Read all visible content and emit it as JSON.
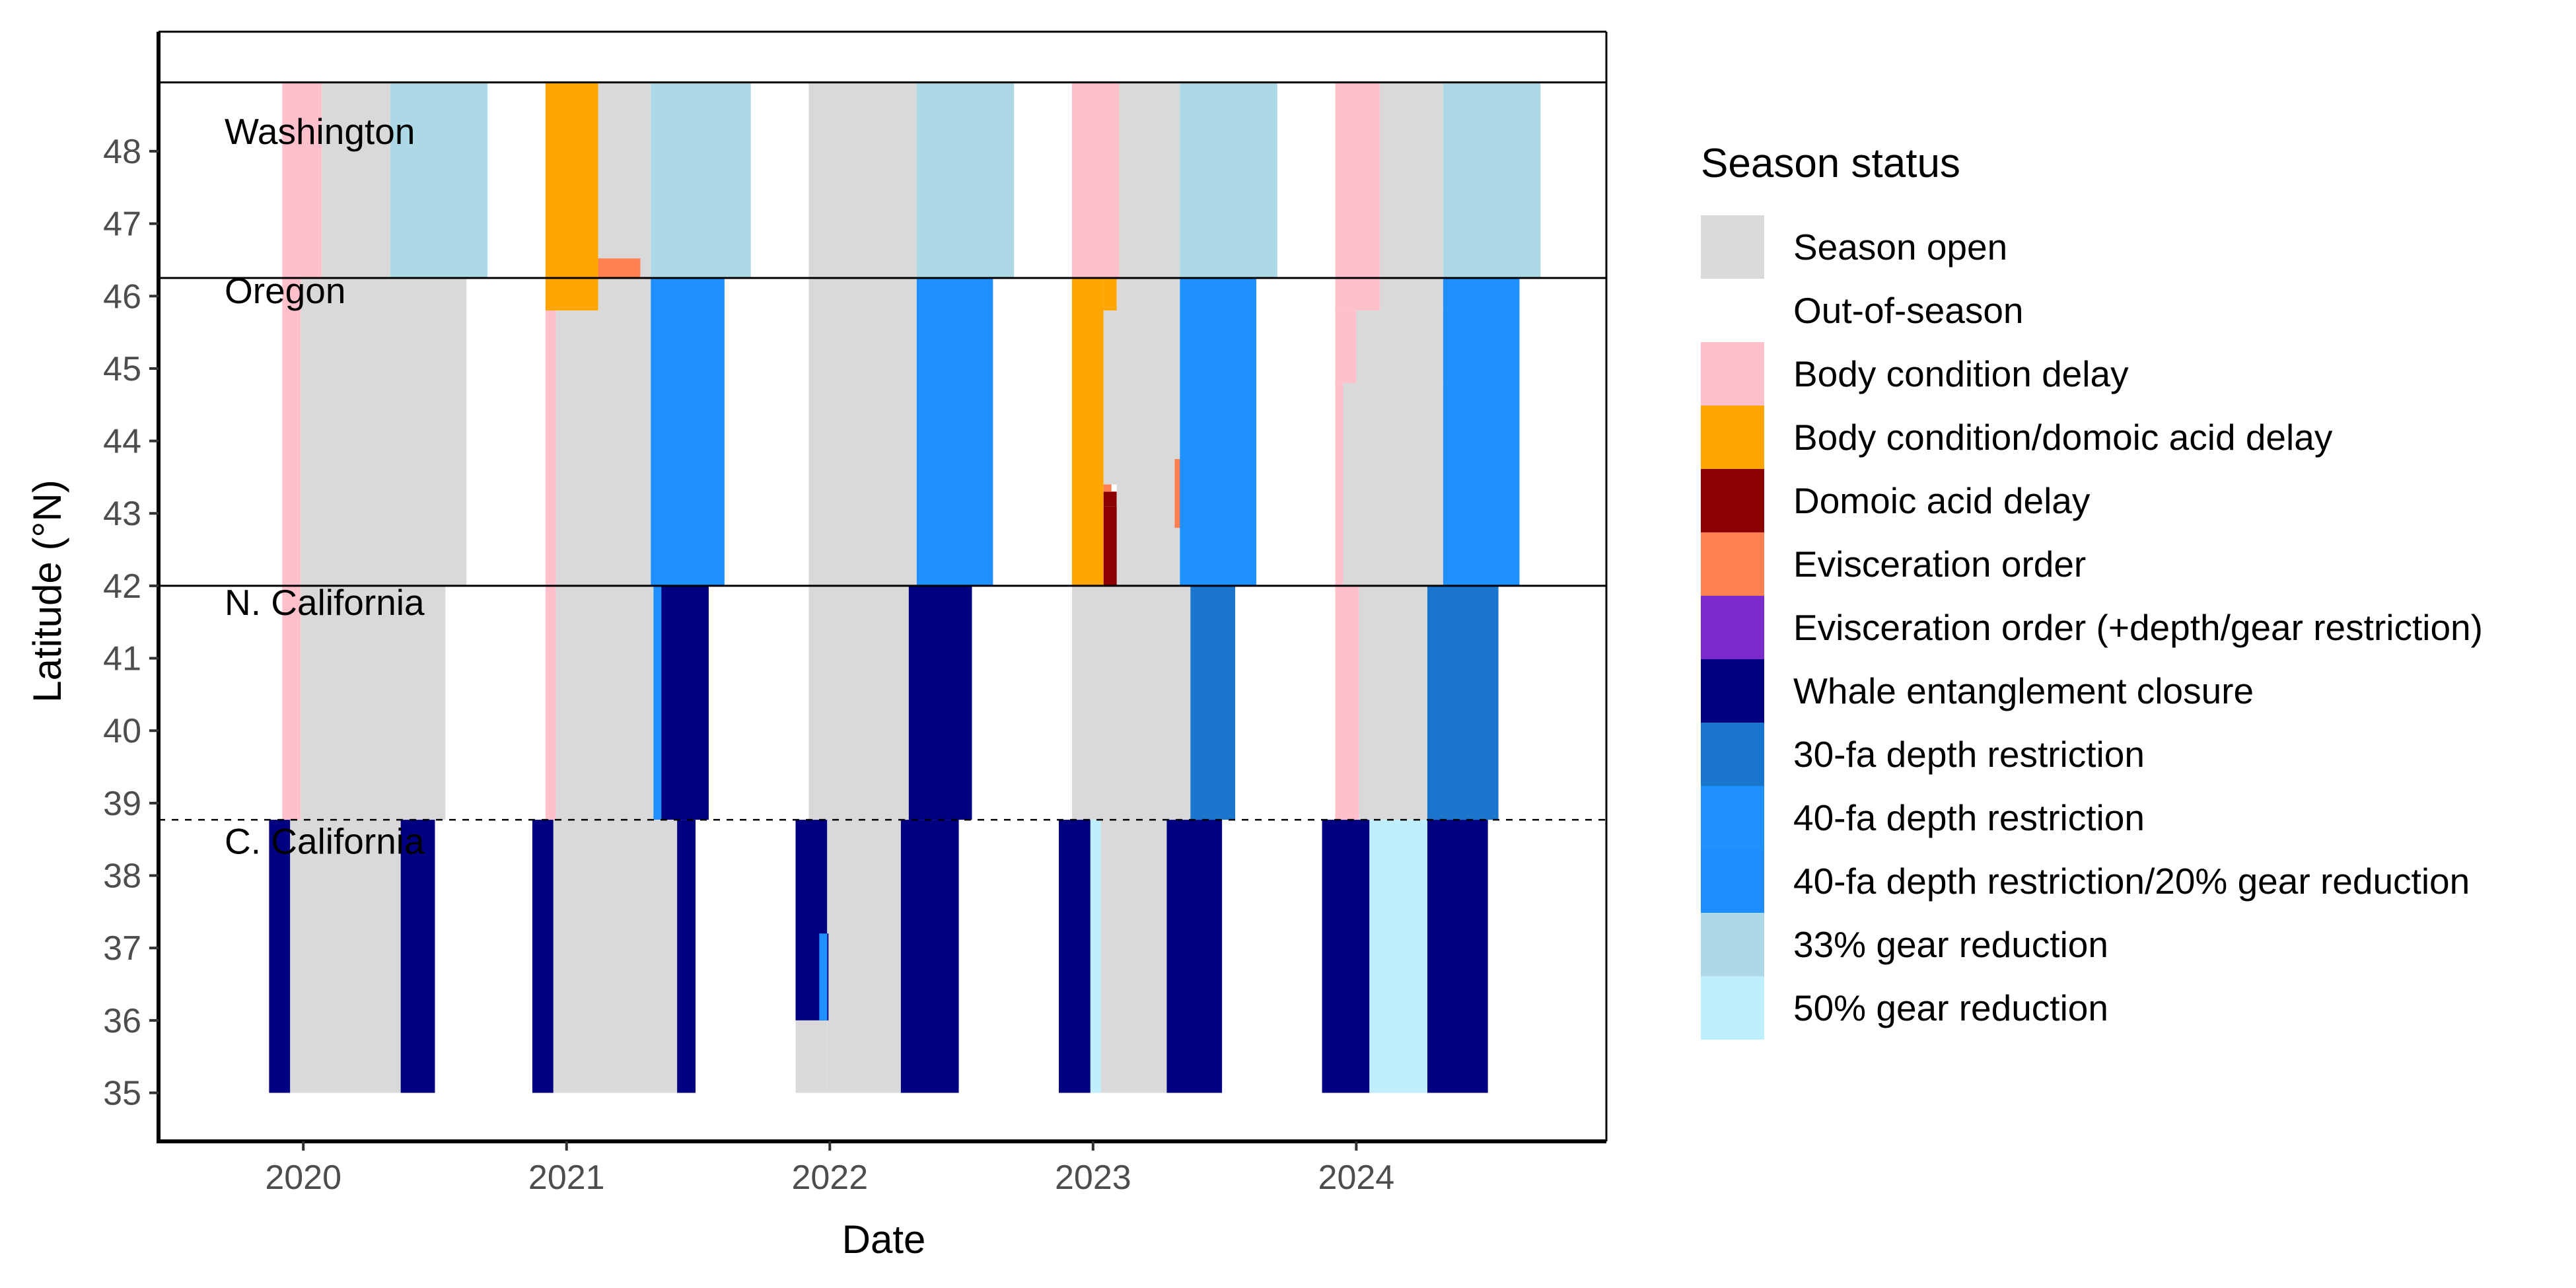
{
  "chart_data": {
    "type": "heatmap",
    "xlabel": "Date",
    "ylabel": "Latitude (°N)",
    "xlim": [
      2019.45,
      2024.95
    ],
    "ylim": [
      34.33,
      49.65
    ],
    "x_ticks": [
      2020,
      2021,
      2022,
      2023,
      2024
    ],
    "y_ticks": [
      35,
      36,
      37,
      38,
      39,
      40,
      41,
      42,
      43,
      44,
      45,
      46,
      47,
      48
    ],
    "region_boundaries": [
      48.95,
      46.25,
      42.0,
      38.77
    ],
    "regions": [
      {
        "name": "Washington",
        "label_lat": 48.1
      },
      {
        "name": "Oregon",
        "label_lat": 45.9
      },
      {
        "name": "N. California",
        "label_lat": 41.6
      },
      {
        "name": "C. California",
        "label_lat": 38.3
      }
    ],
    "legend": {
      "title": "Season status",
      "items": [
        {
          "key": "open",
          "label": "Season open",
          "color": "#d9d9d9"
        },
        {
          "key": "out",
          "label": "Out-of-season",
          "color": "#ffffff"
        },
        {
          "key": "bcd",
          "label": "Body condition delay",
          "color": "#ffc0cb"
        },
        {
          "key": "bcda",
          "label": "Body condition/domoic acid delay",
          "color": "#ffa500"
        },
        {
          "key": "da",
          "label": "Domoic acid delay",
          "color": "#8b0000"
        },
        {
          "key": "evisc",
          "label": "Evisceration order",
          "color": "#ff7f50"
        },
        {
          "key": "evisc_plus",
          "label": "Evisceration order (+depth/gear restriction)",
          "color": "#7b2bcc"
        },
        {
          "key": "whale",
          "label": "Whale entanglement closure",
          "color": "#000080"
        },
        {
          "key": "d30",
          "label": "30-fa depth restriction",
          "color": "#1a75cc"
        },
        {
          "key": "d40",
          "label": "40-fa depth restriction",
          "color": "#1e90ff"
        },
        {
          "key": "d40g20",
          "label": "40-fa depth restriction/20% gear reduction",
          "color": "#1e8cff"
        },
        {
          "key": "g33",
          "label": "33% gear reduction",
          "color": "#add8e6"
        },
        {
          "key": "g50",
          "label": "50% gear reduction",
          "color": "#bfeefc"
        }
      ]
    },
    "blocks": [
      {
        "x0": 2019.72,
        "x1": 2019.92,
        "y0": 46.25,
        "y1": 48.95,
        "status": "out"
      },
      {
        "x0": 2019.92,
        "x1": 2020.07,
        "y0": 46.25,
        "y1": 48.95,
        "status": "bcd"
      },
      {
        "x0": 2020.07,
        "x1": 2020.33,
        "y0": 46.25,
        "y1": 48.95,
        "status": "open"
      },
      {
        "x0": 2020.33,
        "x1": 2020.7,
        "y0": 46.25,
        "y1": 48.95,
        "status": "g33"
      },
      {
        "x0": 2020.92,
        "x1": 2021.12,
        "y0": 46.25,
        "y1": 48.95,
        "status": "bcda"
      },
      {
        "x0": 2021.12,
        "x1": 2021.32,
        "y0": 46.25,
        "y1": 48.95,
        "status": "open"
      },
      {
        "x0": 2021.12,
        "x1": 2021.28,
        "y0": 46.25,
        "y1": 46.52,
        "status": "evisc"
      },
      {
        "x0": 2021.32,
        "x1": 2021.7,
        "y0": 46.25,
        "y1": 48.95,
        "status": "g33"
      },
      {
        "x0": 2021.92,
        "x1": 2022.33,
        "y0": 46.25,
        "y1": 48.95,
        "status": "open"
      },
      {
        "x0": 2022.33,
        "x1": 2022.7,
        "y0": 46.25,
        "y1": 48.95,
        "status": "g33"
      },
      {
        "x0": 2022.92,
        "x1": 2023.1,
        "y0": 46.25,
        "y1": 48.95,
        "status": "bcd"
      },
      {
        "x0": 2023.1,
        "x1": 2023.33,
        "y0": 46.25,
        "y1": 48.95,
        "status": "open"
      },
      {
        "x0": 2023.33,
        "x1": 2023.7,
        "y0": 46.25,
        "y1": 48.95,
        "status": "g33"
      },
      {
        "x0": 2023.92,
        "x1": 2024.09,
        "y0": 46.25,
        "y1": 48.95,
        "status": "bcd"
      },
      {
        "x0": 2024.09,
        "x1": 2024.33,
        "y0": 46.25,
        "y1": 48.95,
        "status": "open"
      },
      {
        "x0": 2024.33,
        "x1": 2024.7,
        "y0": 46.25,
        "y1": 48.95,
        "status": "g33"
      },
      {
        "x0": 2019.92,
        "x1": 2019.99,
        "y0": 42.0,
        "y1": 46.25,
        "status": "bcd"
      },
      {
        "x0": 2019.99,
        "x1": 2020.62,
        "y0": 42.0,
        "y1": 46.25,
        "status": "open"
      },
      {
        "x0": 2020.92,
        "x1": 2021.12,
        "y0": 45.8,
        "y1": 46.25,
        "status": "bcda"
      },
      {
        "x0": 2020.92,
        "x1": 2020.96,
        "y0": 42.0,
        "y1": 45.8,
        "status": "bcd"
      },
      {
        "x0": 2020.96,
        "x1": 2021.32,
        "y0": 42.0,
        "y1": 45.8,
        "status": "open"
      },
      {
        "x0": 2021.12,
        "x1": 2021.32,
        "y0": 45.8,
        "y1": 46.25,
        "status": "open"
      },
      {
        "x0": 2021.32,
        "x1": 2021.6,
        "y0": 42.0,
        "y1": 46.25,
        "status": "d40"
      },
      {
        "x0": 2021.92,
        "x1": 2022.33,
        "y0": 42.0,
        "y1": 46.25,
        "status": "open"
      },
      {
        "x0": 2022.33,
        "x1": 2022.62,
        "y0": 42.0,
        "y1": 46.25,
        "status": "d40"
      },
      {
        "x0": 2022.92,
        "x1": 2023.04,
        "y0": 42.0,
        "y1": 46.25,
        "status": "bcda"
      },
      {
        "x0": 2023.04,
        "x1": 2023.09,
        "y0": 45.8,
        "y1": 46.25,
        "status": "bcda"
      },
      {
        "x0": 2023.04,
        "x1": 2023.09,
        "y0": 43.1,
        "y1": 43.3,
        "status": "da"
      },
      {
        "x0": 2023.04,
        "x1": 2023.07,
        "y0": 43.3,
        "y1": 43.4,
        "status": "evisc"
      },
      {
        "x0": 2023.04,
        "x1": 2023.33,
        "y0": 43.4,
        "y1": 45.8,
        "status": "open"
      },
      {
        "x0": 2023.09,
        "x1": 2023.33,
        "y0": 42.0,
        "y1": 43.4,
        "status": "open"
      },
      {
        "x0": 2023.04,
        "x1": 2023.09,
        "y0": 42.0,
        "y1": 43.1,
        "status": "da"
      },
      {
        "x0": 2023.09,
        "x1": 2023.33,
        "y0": 45.8,
        "y1": 46.25,
        "status": "open"
      },
      {
        "x0": 2023.31,
        "x1": 2023.33,
        "y0": 42.8,
        "y1": 43.75,
        "status": "evisc"
      },
      {
        "x0": 2023.33,
        "x1": 2023.35,
        "y0": 42.8,
        "y1": 43.75,
        "status": "evisc_plus"
      },
      {
        "x0": 2023.33,
        "x1": 2023.62,
        "y0": 42.0,
        "y1": 46.25,
        "status": "d40"
      },
      {
        "x0": 2023.92,
        "x1": 2024.09,
        "y0": 45.8,
        "y1": 46.25,
        "status": "bcd"
      },
      {
        "x0": 2023.92,
        "x1": 2024.0,
        "y0": 44.8,
        "y1": 45.8,
        "status": "bcd"
      },
      {
        "x0": 2023.92,
        "x1": 2023.95,
        "y0": 42.0,
        "y1": 44.8,
        "status": "bcd"
      },
      {
        "x0": 2023.95,
        "x1": 2024.33,
        "y0": 42.0,
        "y1": 44.8,
        "status": "open"
      },
      {
        "x0": 2024.0,
        "x1": 2024.33,
        "y0": 44.8,
        "y1": 45.8,
        "status": "open"
      },
      {
        "x0": 2024.09,
        "x1": 2024.33,
        "y0": 45.8,
        "y1": 46.25,
        "status": "open"
      },
      {
        "x0": 2024.33,
        "x1": 2024.62,
        "y0": 42.0,
        "y1": 46.25,
        "status": "d40"
      },
      {
        "x0": 2019.92,
        "x1": 2019.99,
        "y0": 38.77,
        "y1": 42.0,
        "status": "bcd"
      },
      {
        "x0": 2019.99,
        "x1": 2020.54,
        "y0": 38.77,
        "y1": 42.0,
        "status": "open"
      },
      {
        "x0": 2020.92,
        "x1": 2020.96,
        "y0": 38.77,
        "y1": 42.0,
        "status": "bcd"
      },
      {
        "x0": 2020.96,
        "x1": 2021.33,
        "y0": 38.77,
        "y1": 42.0,
        "status": "open"
      },
      {
        "x0": 2021.33,
        "x1": 2021.36,
        "y0": 38.77,
        "y1": 42.0,
        "status": "d40"
      },
      {
        "x0": 2021.36,
        "x1": 2021.54,
        "y0": 38.77,
        "y1": 42.0,
        "status": "whale"
      },
      {
        "x0": 2021.92,
        "x1": 2022.3,
        "y0": 38.77,
        "y1": 42.0,
        "status": "open"
      },
      {
        "x0": 2022.3,
        "x1": 2022.54,
        "y0": 38.77,
        "y1": 42.0,
        "status": "whale"
      },
      {
        "x0": 2022.92,
        "x1": 2023.37,
        "y0": 38.77,
        "y1": 42.0,
        "status": "open"
      },
      {
        "x0": 2023.37,
        "x1": 2023.54,
        "y0": 38.77,
        "y1": 42.0,
        "status": "d30"
      },
      {
        "x0": 2023.92,
        "x1": 2024.01,
        "y0": 38.77,
        "y1": 42.0,
        "status": "bcd"
      },
      {
        "x0": 2024.01,
        "x1": 2024.27,
        "y0": 38.77,
        "y1": 42.0,
        "status": "open"
      },
      {
        "x0": 2024.27,
        "x1": 2024.54,
        "y0": 38.77,
        "y1": 42.0,
        "status": "d30"
      },
      {
        "x0": 2019.87,
        "x1": 2019.95,
        "y0": 35.0,
        "y1": 38.77,
        "status": "whale"
      },
      {
        "x0": 2019.95,
        "x1": 2020.37,
        "y0": 35.0,
        "y1": 38.77,
        "status": "open"
      },
      {
        "x0": 2020.37,
        "x1": 2020.5,
        "y0": 35.0,
        "y1": 38.77,
        "status": "whale"
      },
      {
        "x0": 2020.87,
        "x1": 2020.95,
        "y0": 35.0,
        "y1": 38.77,
        "status": "whale"
      },
      {
        "x0": 2020.95,
        "x1": 2021.42,
        "y0": 35.0,
        "y1": 38.77,
        "status": "open"
      },
      {
        "x0": 2021.42,
        "x1": 2021.49,
        "y0": 35.0,
        "y1": 38.77,
        "status": "whale"
      },
      {
        "x0": 2021.87,
        "x1": 2021.99,
        "y0": 36.0,
        "y1": 38.77,
        "status": "whale"
      },
      {
        "x0": 2021.99,
        "x1": 2022.27,
        "y0": 35.0,
        "y1": 38.77,
        "status": "open"
      },
      {
        "x0": 2021.87,
        "x1": 2021.99,
        "y0": 35.0,
        "y1": 36.0,
        "status": "open"
      },
      {
        "x0": 2021.99,
        "x1": 2021.995,
        "y0": 36.0,
        "y1": 37.2,
        "status": "whale"
      },
      {
        "x0": 2021.96,
        "x1": 2021.99,
        "y0": 36.0,
        "y1": 37.2,
        "status": "d40"
      },
      {
        "x0": 2022.27,
        "x1": 2022.49,
        "y0": 35.0,
        "y1": 38.77,
        "status": "whale"
      },
      {
        "x0": 2022.87,
        "x1": 2022.99,
        "y0": 35.0,
        "y1": 38.77,
        "status": "whale"
      },
      {
        "x0": 2022.99,
        "x1": 2023.03,
        "y0": 35.0,
        "y1": 38.77,
        "status": "g50"
      },
      {
        "x0": 2023.03,
        "x1": 2023.28,
        "y0": 35.0,
        "y1": 38.77,
        "status": "open"
      },
      {
        "x0": 2023.28,
        "x1": 2023.49,
        "y0": 35.0,
        "y1": 38.77,
        "status": "whale"
      },
      {
        "x0": 2023.87,
        "x1": 2024.05,
        "y0": 35.0,
        "y1": 38.77,
        "status": "whale"
      },
      {
        "x0": 2024.05,
        "x1": 2024.27,
        "y0": 35.0,
        "y1": 38.77,
        "status": "g50"
      },
      {
        "x0": 2024.27,
        "x1": 2024.5,
        "y0": 35.0,
        "y1": 38.77,
        "status": "whale"
      }
    ]
  }
}
